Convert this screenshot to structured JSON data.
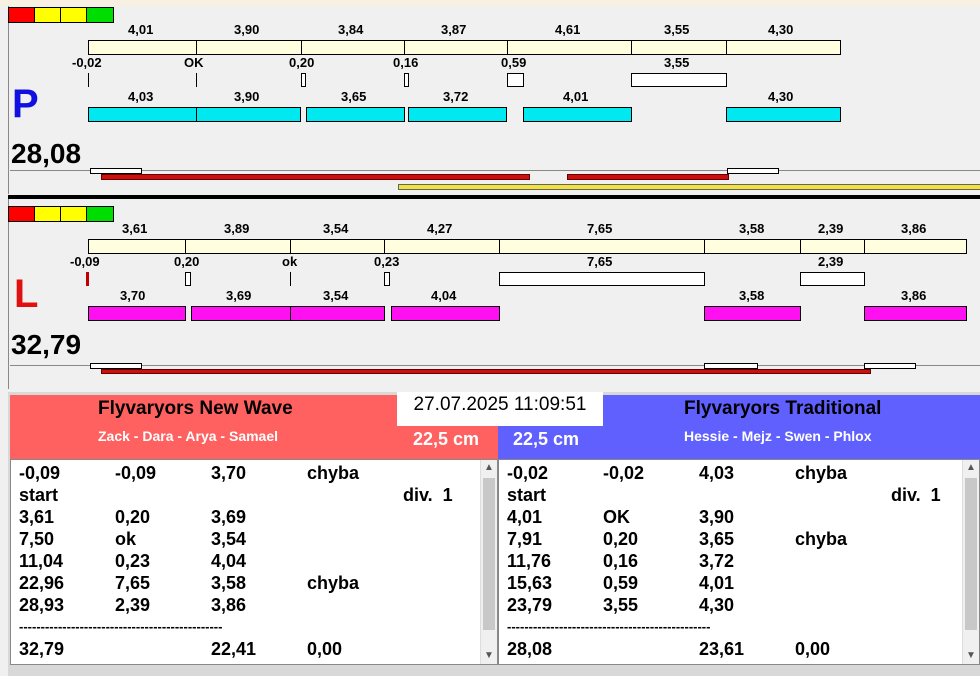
{
  "top_bar": "",
  "lane_p": {
    "letter": "P",
    "letter_color": "#1010e0",
    "total": "28,08",
    "top_values": [
      "4,01",
      "3,90",
      "3,84",
      "3,87",
      "4,61",
      "3,55",
      "4,30"
    ],
    "reaction_values": [
      "-0,02",
      "OK",
      "0,20",
      "0,16",
      "0,59",
      "3,55"
    ],
    "bottom_values": [
      "4,03",
      "3,90",
      "3,65",
      "3,72",
      "4,01",
      "4,30"
    ]
  },
  "lane_l": {
    "letter": "L",
    "letter_color": "#e01010",
    "total": "32,79",
    "top_values": [
      "3,61",
      "3,89",
      "3,54",
      "4,27",
      "7,65",
      "3,58",
      "2,39",
      "3,86"
    ],
    "reaction_values": [
      "-0,09",
      "0,20",
      "ok",
      "0,23",
      "7,65",
      "2,39"
    ],
    "bottom_values": [
      "3,70",
      "3,69",
      "3,54",
      "4,04",
      "3,58",
      "3,86"
    ]
  },
  "timestamp": "27.07.2025 11:09:51",
  "team_left": {
    "name": "Flyvaryors New Wave",
    "members": "Zack - Dara - Arya - Samael",
    "distance": "22,5 cm",
    "color": "#ff6060",
    "rows": [
      [
        "-0,09",
        "-0,09",
        "3,70",
        "chyba",
        ""
      ],
      [
        "start",
        "",
        "",
        "",
        "div.  1"
      ],
      [
        "3,61",
        "0,20",
        "3,69",
        "",
        ""
      ],
      [
        "7,50",
        "ok",
        "3,54",
        "",
        ""
      ],
      [
        "11,04",
        "0,23",
        "4,04",
        "",
        ""
      ],
      [
        "22,96",
        "7,65",
        "3,58",
        "chyba",
        ""
      ],
      [
        "28,93",
        "2,39",
        "3,86",
        "",
        ""
      ],
      [
        "-----------------------------------------------",
        "",
        "",
        "",
        ""
      ],
      [
        "32,79",
        "",
        "22,41",
        "0,00",
        ""
      ]
    ]
  },
  "team_right": {
    "name": "Flyvaryors Traditional",
    "members": "Hessie - Mejz - Swen - Phlox",
    "distance": "22,5 cm",
    "color": "#6060ff",
    "rows": [
      [
        "-0,02",
        "-0,02",
        "4,03",
        "chyba",
        ""
      ],
      [
        "start",
        "",
        "",
        "",
        "div.  1"
      ],
      [
        "4,01",
        "OK",
        "3,90",
        "",
        ""
      ],
      [
        "7,91",
        "0,20",
        "3,65",
        "chyba",
        ""
      ],
      [
        "11,76",
        "0,16",
        "3,72",
        "",
        ""
      ],
      [
        "15,63",
        "0,59",
        "4,01",
        "",
        ""
      ],
      [
        "23,79",
        "3,55",
        "4,30",
        "",
        ""
      ],
      [
        "-----------------------------------------------",
        "",
        "",
        "",
        ""
      ],
      [
        "28,08",
        "",
        "23,61",
        "0,00",
        ""
      ]
    ]
  }
}
